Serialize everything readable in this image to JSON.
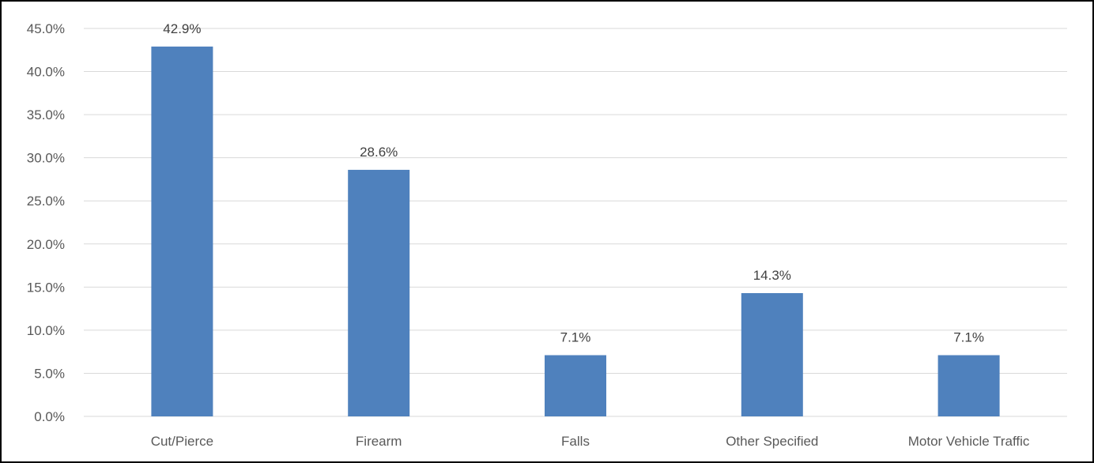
{
  "chart_data": {
    "type": "bar",
    "categories": [
      "Cut/Pierce",
      "Firearm",
      "Falls",
      "Other Specified",
      "Motor Vehicle Traffic"
    ],
    "values": [
      42.9,
      28.6,
      7.1,
      14.3,
      7.1
    ],
    "data_labels": [
      "42.9%",
      "28.6%",
      "7.1%",
      "14.3%",
      "7.1%"
    ],
    "y_ticks": [
      "0.0%",
      "5.0%",
      "10.0%",
      "15.0%",
      "20.0%",
      "25.0%",
      "30.0%",
      "35.0%",
      "40.0%",
      "45.0%"
    ],
    "ylim": [
      0,
      45
    ],
    "title": "",
    "xlabel": "",
    "ylabel": "",
    "grid": true,
    "legend": "none",
    "bar_color": "#4F81BD",
    "grid_color": "#D9D9D9"
  }
}
